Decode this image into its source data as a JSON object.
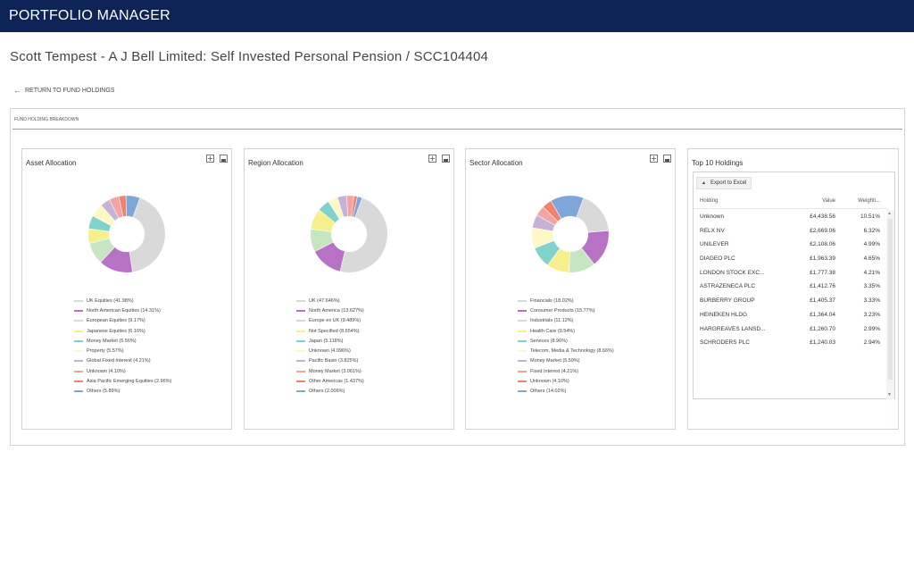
{
  "app": {
    "title": "PORTFOLIO MANAGER"
  },
  "page": {
    "title": "Scott Tempest - A J Bell Limited: Self Invested Personal Pension / SCC104404"
  },
  "nav": {
    "back_label": "RETURN TO FUND HOLDINGS",
    "back_icon": "arrow-left-icon"
  },
  "section": {
    "label": "FUND HOLDING BREAKDOWN"
  },
  "panels": [
    {
      "title": "Asset Allocation",
      "chart_data": {
        "type": "pie",
        "title": "Asset Allocation",
        "slices": [
          {
            "label": "UK Equities (41.98%)",
            "value": 41.98,
            "color": "#d9d9d9"
          },
          {
            "label": "North American Equities (14.31%)",
            "value": 14.31,
            "color": "#b872c5"
          },
          {
            "label": "European Equities (9.17%)",
            "value": 9.17,
            "color": "#c6e5c1"
          },
          {
            "label": "Japanese Equities (6.16%)",
            "value": 6.16,
            "color": "#f7ef8c"
          },
          {
            "label": "Money Market (5.56%)",
            "value": 5.56,
            "color": "#7fd3cc"
          },
          {
            "label": "Property (5.57%)",
            "value": 5.57,
            "color": "#fdf8c4"
          },
          {
            "label": "Global Fixed Interest (4.21%)",
            "value": 4.21,
            "color": "#c7b1d6"
          },
          {
            "label": "Unknown (4.10%)",
            "value": 4.1,
            "color": "#f4a3a3"
          },
          {
            "label": "Asia Pacific Emerging Equities (2.96%)",
            "value": 2.96,
            "color": "#f08270"
          },
          {
            "label": "Others (5.89%)",
            "value": 5.89,
            "color": "#7ea6d8"
          }
        ]
      }
    },
    {
      "title": "Region Allocation",
      "chart_data": {
        "type": "pie",
        "title": "Region Allocation",
        "slices": [
          {
            "label": "UK (47.646%)",
            "value": 47.646,
            "color": "#d9d9d9"
          },
          {
            "label": "North America (13.627%)",
            "value": 13.627,
            "color": "#b872c5"
          },
          {
            "label": "Europe ex UK (9.489%)",
            "value": 9.489,
            "color": "#c6e5c1"
          },
          {
            "label": "Not Specified (8.654%)",
            "value": 8.654,
            "color": "#f7ef8c"
          },
          {
            "label": "Japan (5.118%)",
            "value": 5.118,
            "color": "#7fd3cc"
          },
          {
            "label": "Unknown (4.096%)",
            "value": 4.096,
            "color": "#fdf8c4"
          },
          {
            "label": "Pacific Basin (3.825%)",
            "value": 3.825,
            "color": "#c7b1d6"
          },
          {
            "label": "Money Market (3.061%)",
            "value": 3.061,
            "color": "#f4a3a3"
          },
          {
            "label": "Other Americas (1.437%)",
            "value": 1.437,
            "color": "#f08270"
          },
          {
            "label": "Others (2.006%)",
            "value": 2.006,
            "color": "#7ea6d8"
          }
        ]
      }
    },
    {
      "title": "Sector Allocation",
      "chart_data": {
        "type": "pie",
        "title": "Sector Allocation",
        "slices": [
          {
            "label": "Financials (18.02%)",
            "value": 18.02,
            "color": "#d9d9d9"
          },
          {
            "label": "Consumer Products (15.77%)",
            "value": 15.77,
            "color": "#b872c5"
          },
          {
            "label": "Industrials (11.12%)",
            "value": 11.12,
            "color": "#c6e5c1"
          },
          {
            "label": "Health Care (9.54%)",
            "value": 9.54,
            "color": "#f7ef8c"
          },
          {
            "label": "Services (8.96%)",
            "value": 8.96,
            "color": "#7fd3cc"
          },
          {
            "label": "Telecom, Media & Technology (8.66%)",
            "value": 8.66,
            "color": "#fdf8c4"
          },
          {
            "label": "Money Market (5.59%)",
            "value": 5.59,
            "color": "#c7b1d6"
          },
          {
            "label": "Fixed Interest (4.21%)",
            "value": 4.21,
            "color": "#f4a3a3"
          },
          {
            "label": "Unknown (4.10%)",
            "value": 4.1,
            "color": "#f08270"
          },
          {
            "label": "Others (14.02%)",
            "value": 14.02,
            "color": "#7ea6d8"
          }
        ]
      }
    }
  ],
  "top_holdings": {
    "title": "Top 10 Holdings",
    "export_label": "Export to Excel",
    "columns": {
      "holding": "Holding",
      "value": "Value",
      "weighting": "Weighti..."
    },
    "rows": [
      {
        "holding": "Unknown",
        "value": "£4,438.56",
        "weighting": "10.51%"
      },
      {
        "holding": "RELX NV",
        "value": "£2,669.06",
        "weighting": "6.32%"
      },
      {
        "holding": "UNILEVER",
        "value": "£2,108.06",
        "weighting": "4.99%"
      },
      {
        "holding": "DIAGEO PLC",
        "value": "£1,963.39",
        "weighting": "4.65%"
      },
      {
        "holding": "LONDON STOCK EXC...",
        "value": "£1,777.38",
        "weighting": "4.21%"
      },
      {
        "holding": "ASTRAZENECA PLC",
        "value": "£1,412.76",
        "weighting": "3.35%"
      },
      {
        "holding": "BURBERRY GROUP",
        "value": "£1,405.37",
        "weighting": "3.33%"
      },
      {
        "holding": "HEINEKEN HLDG",
        "value": "£1,364.04",
        "weighting": "3.23%"
      },
      {
        "holding": "HARGREAVES LANSD...",
        "value": "£1,260.70",
        "weighting": "2.99%"
      },
      {
        "holding": "SCHRODERS PLC",
        "value": "£1,240.03",
        "weighting": "2.94%"
      }
    ]
  }
}
